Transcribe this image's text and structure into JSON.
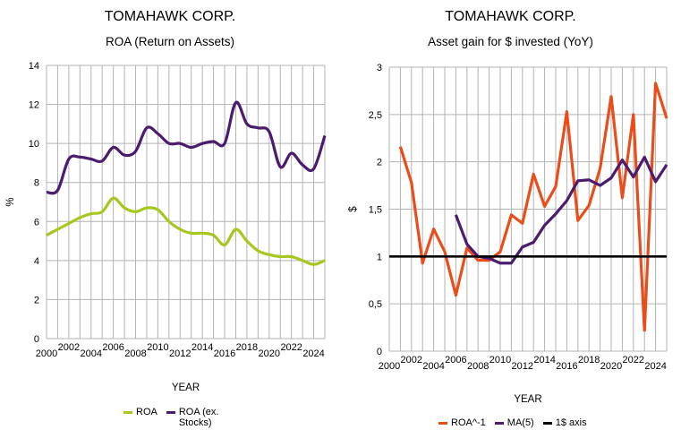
{
  "colors": {
    "roa": "#a6c81e",
    "roa_ex": "#4b1b6e",
    "roa_inv": "#ea4d1a",
    "ma5": "#4b1b6e",
    "one_axis": "#000000",
    "grid": "#b3b3b3"
  },
  "chart_data": [
    {
      "type": "line",
      "title": "TOMAHAWK CORP.",
      "subtitle": "ROA (Return on Assets)",
      "xlabel": "YEAR",
      "ylabel": "%",
      "xlim": [
        2000,
        2025
      ],
      "ylim": [
        0,
        14
      ],
      "x_ticks": [
        "2000",
        "2002",
        "2004",
        "2006",
        "2008",
        "2010",
        "2012",
        "2014",
        "2016",
        "2018",
        "2020",
        "2022",
        "2024"
      ],
      "y_ticks": [
        "0",
        "2",
        "4",
        "6",
        "8",
        "10",
        "12",
        "14"
      ],
      "grid": true,
      "legend_position": "bottom",
      "series": [
        {
          "name": "ROA",
          "color": "#a6c81e",
          "x": [
            2000,
            2001,
            2002,
            2003,
            2004,
            2005,
            2006,
            2007,
            2008,
            2009,
            2010,
            2011,
            2012,
            2013,
            2014,
            2015,
            2016,
            2017,
            2018,
            2019,
            2020,
            2021,
            2022,
            2023,
            2024,
            2025
          ],
          "values": [
            5.3,
            5.6,
            5.9,
            6.2,
            6.4,
            6.5,
            7.2,
            6.7,
            6.5,
            6.7,
            6.6,
            6.0,
            5.6,
            5.4,
            5.4,
            5.3,
            4.8,
            5.6,
            5.0,
            4.5,
            4.3,
            4.2,
            4.2,
            4.0,
            3.8,
            4.0
          ]
        },
        {
          "name": "ROA (ex. Stocks)",
          "color": "#4b1b6e",
          "x": [
            2000,
            2001,
            2002,
            2003,
            2004,
            2005,
            2006,
            2007,
            2008,
            2009,
            2010,
            2011,
            2012,
            2013,
            2014,
            2015,
            2016,
            2017,
            2018,
            2019,
            2020,
            2021,
            2022,
            2023,
            2024,
            2025
          ],
          "values": [
            7.5,
            7.6,
            9.2,
            9.3,
            9.2,
            9.1,
            9.8,
            9.4,
            9.6,
            10.8,
            10.5,
            10.0,
            10.0,
            9.8,
            10.0,
            10.1,
            10.0,
            12.1,
            11.0,
            10.8,
            10.6,
            8.8,
            9.5,
            8.9,
            8.7,
            10.4
          ]
        }
      ]
    },
    {
      "type": "line",
      "title": "TOMAHAWK CORP.",
      "subtitle": "Asset gain for $ invested (YoY)",
      "xlabel": "YEAR",
      "ylabel": "$",
      "xlim": [
        2000,
        2025
      ],
      "ylim": [
        0,
        3
      ],
      "x_ticks": [
        "2000",
        "2002",
        "2004",
        "2006",
        "2008",
        "2010",
        "2012",
        "2014",
        "2016",
        "2018",
        "2020",
        "2022",
        "2024"
      ],
      "y_ticks": [
        "0",
        "0,5",
        "1",
        "1,5",
        "2",
        "2,5",
        "3"
      ],
      "grid": true,
      "legend_position": "bottom",
      "series": [
        {
          "name": "ROA^-1",
          "color": "#ea4d1a",
          "x": [
            2001,
            2002,
            2003,
            2004,
            2005,
            2006,
            2007,
            2008,
            2009,
            2010,
            2011,
            2012,
            2013,
            2014,
            2015,
            2016,
            2017,
            2018,
            2019,
            2020,
            2021,
            2022,
            2023,
            2024,
            2025
          ],
          "values": [
            2.16,
            1.78,
            0.93,
            1.29,
            1.05,
            0.59,
            1.09,
            0.96,
            0.96,
            1.05,
            1.44,
            1.35,
            1.87,
            1.53,
            1.74,
            2.53,
            1.38,
            1.54,
            1.93,
            2.69,
            1.62,
            2.5,
            0.22,
            2.83,
            2.46
          ]
        },
        {
          "name": "MA(5)",
          "color": "#4b1b6e",
          "x": [
            2006,
            2007,
            2008,
            2009,
            2010,
            2011,
            2012,
            2013,
            2014,
            2015,
            2016,
            2017,
            2018,
            2019,
            2020,
            2021,
            2022,
            2023,
            2024,
            2025
          ],
          "values": [
            1.44,
            1.13,
            1.0,
            0.98,
            0.93,
            0.93,
            1.1,
            1.15,
            1.33,
            1.45,
            1.59,
            1.8,
            1.81,
            1.75,
            1.83,
            2.02,
            1.84,
            2.05,
            1.79,
            1.97
          ]
        },
        {
          "name": "1$ axis",
          "color": "#000000",
          "x": [
            2000,
            2025
          ],
          "values": [
            1,
            1
          ]
        }
      ]
    }
  ]
}
